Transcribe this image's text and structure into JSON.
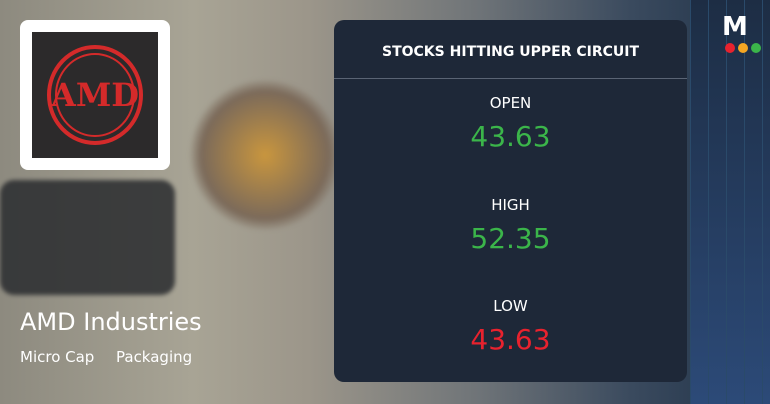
{
  "company": {
    "name": "AMD Industries",
    "tags": [
      "Micro Cap",
      "Packaging"
    ],
    "logo_text": "AMD"
  },
  "brand": "M",
  "panel": {
    "title": "STOCKS HITTING UPPER CIRCUIT",
    "stats": [
      {
        "label": "OPEN",
        "value": 43.63,
        "color": "#3bb54a"
      },
      {
        "label": "HIGH",
        "value": 52.35,
        "color": "#3bb54a"
      },
      {
        "label": "LOW",
        "value": 43.63,
        "color": "#e8222e"
      }
    ]
  }
}
